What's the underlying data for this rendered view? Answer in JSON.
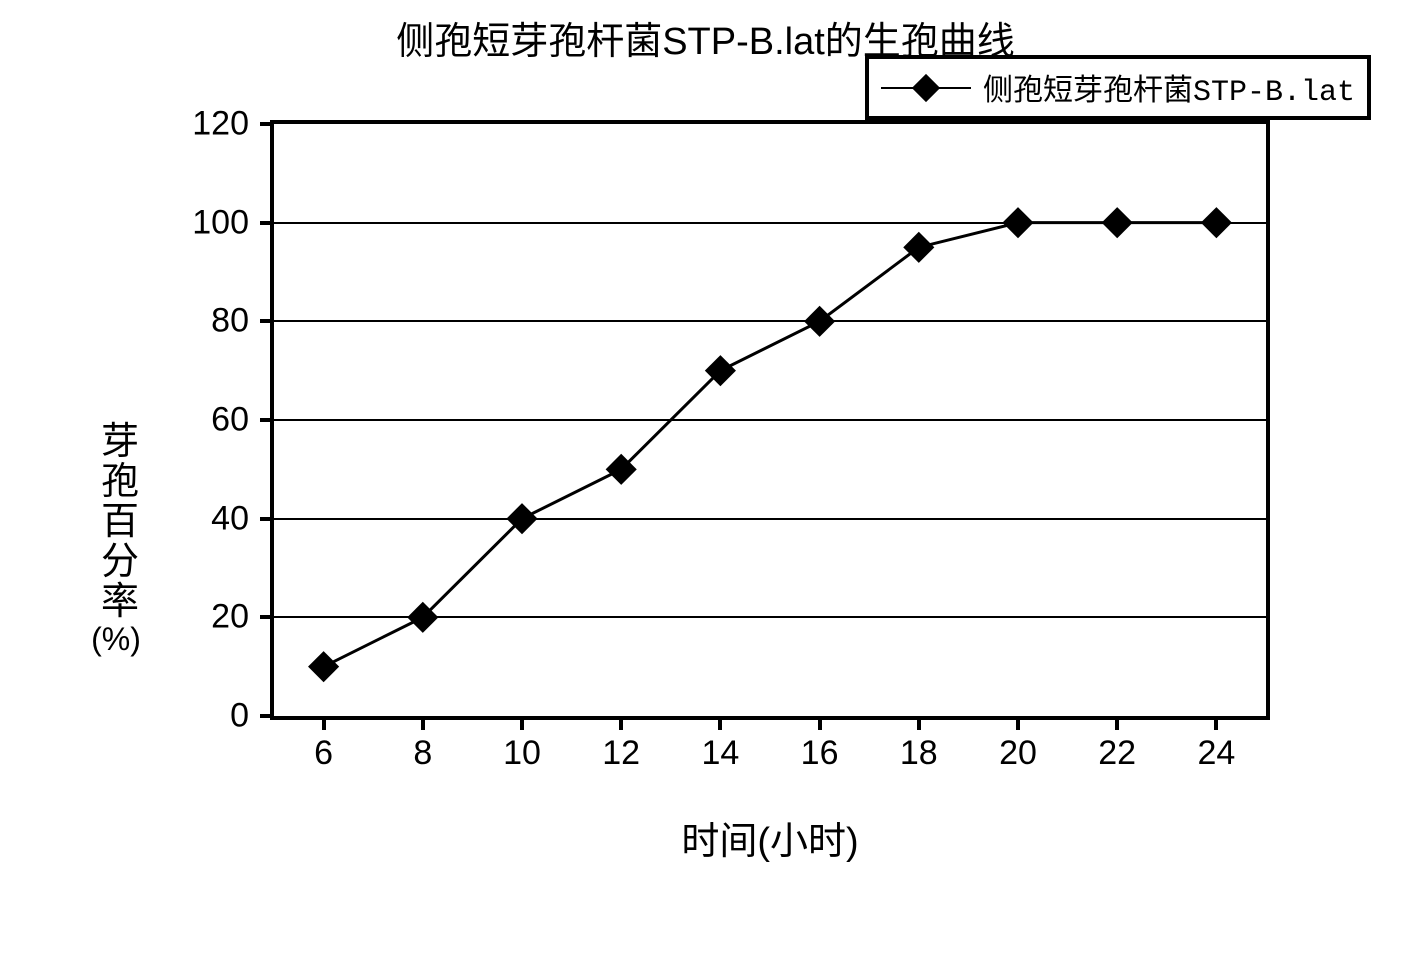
{
  "chart": {
    "type": "line",
    "title": "侧孢短芽孢杆菌STP-B.lat的生孢曲线",
    "title_fontsize": 38,
    "legend": {
      "label": "侧孢短芽孢杆菌STP-B.lat",
      "fontsize": 30,
      "position": "top-right",
      "border_color": "#000000",
      "marker": "diamond",
      "marker_color": "#000000"
    },
    "x_axis": {
      "label": "时间(小时)",
      "label_fontsize": 38,
      "ticks": [
        6,
        8,
        10,
        12,
        14,
        16,
        18,
        20,
        22,
        24
      ],
      "tick_fontsize": 34,
      "min_frac": 0.05,
      "max_frac": 0.95
    },
    "y_axis": {
      "label": "芽孢百分率(%)",
      "label_fontsize": 38,
      "ticks": [
        0,
        20,
        40,
        60,
        80,
        100,
        120
      ],
      "tick_fontsize": 34,
      "ylim": [
        0,
        120
      ]
    },
    "series": {
      "x": [
        6,
        8,
        10,
        12,
        14,
        16,
        18,
        20,
        22,
        24
      ],
      "y": [
        10,
        20,
        40,
        50,
        70,
        80,
        95,
        100,
        100,
        100
      ],
      "line_color": "#000000",
      "line_width": 3,
      "marker_style": "diamond",
      "marker_size": 22,
      "marker_color": "#000000"
    },
    "background_color": "#ffffff",
    "grid_color": "#000000",
    "axis_color": "#000000"
  }
}
